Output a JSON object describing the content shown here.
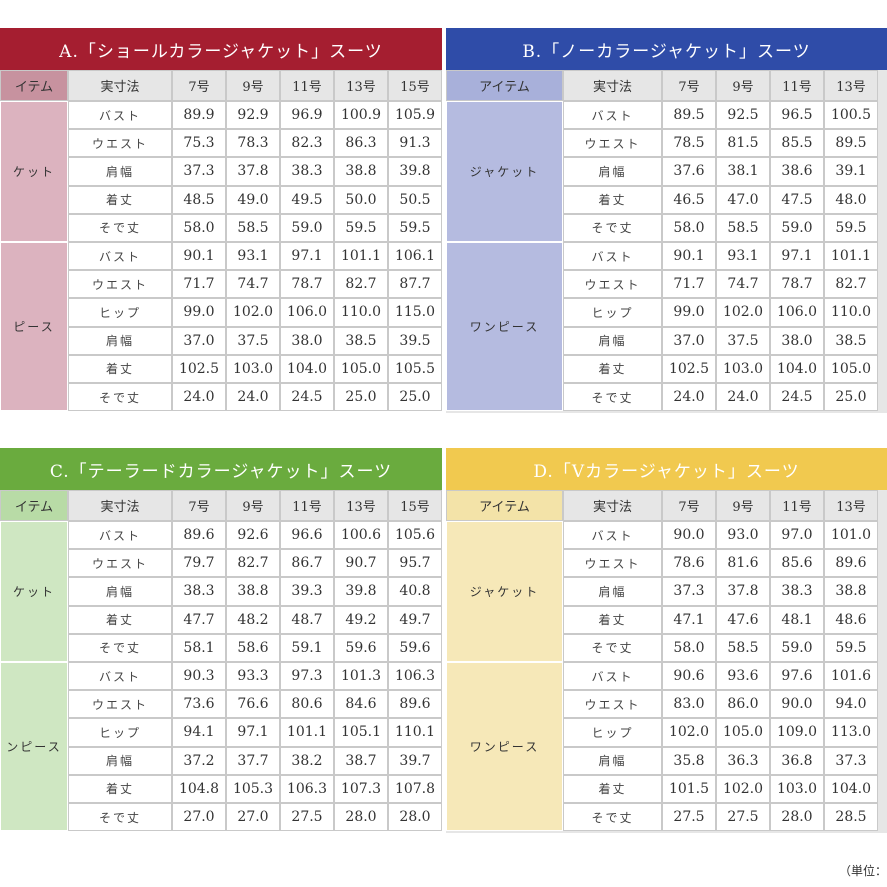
{
  "tables": [
    {
      "title": "A.「ショールカラージャケット」スーツ",
      "headers": [
        "イテム",
        "実寸法",
        "7号",
        "9号",
        "11号",
        "13号",
        "15号"
      ],
      "groups": [
        {
          "item": "ケット",
          "rows": [
            {
              "label": "バスト",
              "values": [
                "89.9",
                "92.9",
                "96.9",
                "100.9",
                "105.9"
              ]
            },
            {
              "label": "ウエスト",
              "values": [
                "75.3",
                "78.3",
                "82.3",
                "86.3",
                "91.3"
              ]
            },
            {
              "label": "肩幅",
              "values": [
                "37.3",
                "37.8",
                "38.3",
                "38.8",
                "39.8"
              ]
            },
            {
              "label": "着丈",
              "values": [
                "48.5",
                "49.0",
                "49.5",
                "50.0",
                "50.5"
              ]
            },
            {
              "label": "そで丈",
              "values": [
                "58.0",
                "58.5",
                "59.0",
                "59.5",
                "59.5"
              ]
            }
          ]
        },
        {
          "item": "ピース",
          "rows": [
            {
              "label": "バスト",
              "values": [
                "90.1",
                "93.1",
                "97.1",
                "101.1",
                "106.1"
              ]
            },
            {
              "label": "ウエスト",
              "values": [
                "71.7",
                "74.7",
                "78.7",
                "82.7",
                "87.7"
              ]
            },
            {
              "label": "ヒップ",
              "values": [
                "99.0",
                "102.0",
                "106.0",
                "110.0",
                "115.0"
              ]
            },
            {
              "label": "肩幅",
              "values": [
                "37.0",
                "37.5",
                "38.0",
                "38.5",
                "39.5"
              ]
            },
            {
              "label": "着丈",
              "values": [
                "102.5",
                "103.0",
                "104.0",
                "105.0",
                "105.5"
              ]
            },
            {
              "label": "そで丈",
              "values": [
                "24.0",
                "24.0",
                "24.5",
                "25.0",
                "25.0"
              ]
            }
          ]
        }
      ]
    },
    {
      "title": "B.「ノーカラージャケット」スーツ",
      "headers": [
        "アイテム",
        "実寸法",
        "7号",
        "9号",
        "11号",
        "13号"
      ],
      "groups": [
        {
          "item": "ジャケット",
          "rows": [
            {
              "label": "バスト",
              "values": [
                "89.5",
                "92.5",
                "96.5",
                "100.5"
              ]
            },
            {
              "label": "ウエスト",
              "values": [
                "78.5",
                "81.5",
                "85.5",
                "89.5"
              ]
            },
            {
              "label": "肩幅",
              "values": [
                "37.6",
                "38.1",
                "38.6",
                "39.1"
              ]
            },
            {
              "label": "着丈",
              "values": [
                "46.5",
                "47.0",
                "47.5",
                "48.0"
              ]
            },
            {
              "label": "そで丈",
              "values": [
                "58.0",
                "58.5",
                "59.0",
                "59.5"
              ]
            }
          ]
        },
        {
          "item": "ワンピース",
          "rows": [
            {
              "label": "バスト",
              "values": [
                "90.1",
                "93.1",
                "97.1",
                "101.1"
              ]
            },
            {
              "label": "ウエスト",
              "values": [
                "71.7",
                "74.7",
                "78.7",
                "82.7"
              ]
            },
            {
              "label": "ヒップ",
              "values": [
                "99.0",
                "102.0",
                "106.0",
                "110.0"
              ]
            },
            {
              "label": "肩幅",
              "values": [
                "37.0",
                "37.5",
                "38.0",
                "38.5"
              ]
            },
            {
              "label": "着丈",
              "values": [
                "102.5",
                "103.0",
                "104.0",
                "105.0"
              ]
            },
            {
              "label": "そで丈",
              "values": [
                "24.0",
                "24.0",
                "24.5",
                "25.0"
              ]
            }
          ]
        }
      ]
    },
    {
      "title": "C.「テーラードカラージャケット」スーツ",
      "headers": [
        "イテム",
        "実寸法",
        "7号",
        "9号",
        "11号",
        "13号",
        "15号"
      ],
      "groups": [
        {
          "item": "ケット",
          "rows": [
            {
              "label": "バスト",
              "values": [
                "89.6",
                "92.6",
                "96.6",
                "100.6",
                "105.6"
              ]
            },
            {
              "label": "ウエスト",
              "values": [
                "79.7",
                "82.7",
                "86.7",
                "90.7",
                "95.7"
              ]
            },
            {
              "label": "肩幅",
              "values": [
                "38.3",
                "38.8",
                "39.3",
                "39.8",
                "40.8"
              ]
            },
            {
              "label": "着丈",
              "values": [
                "47.7",
                "48.2",
                "48.7",
                "49.2",
                "49.7"
              ]
            },
            {
              "label": "そで丈",
              "values": [
                "58.1",
                "58.6",
                "59.1",
                "59.6",
                "59.6"
              ]
            }
          ]
        },
        {
          "item": "ンピース",
          "rows": [
            {
              "label": "バスト",
              "values": [
                "90.3",
                "93.3",
                "97.3",
                "101.3",
                "106.3"
              ]
            },
            {
              "label": "ウエスト",
              "values": [
                "73.6",
                "76.6",
                "80.6",
                "84.6",
                "89.6"
              ]
            },
            {
              "label": "ヒップ",
              "values": [
                "94.1",
                "97.1",
                "101.1",
                "105.1",
                "110.1"
              ]
            },
            {
              "label": "肩幅",
              "values": [
                "37.2",
                "37.7",
                "38.2",
                "38.7",
                "39.7"
              ]
            },
            {
              "label": "着丈",
              "values": [
                "104.8",
                "105.3",
                "106.3",
                "107.3",
                "107.8"
              ]
            },
            {
              "label": "そで丈",
              "values": [
                "27.0",
                "27.0",
                "27.5",
                "28.0",
                "28.0"
              ]
            }
          ]
        }
      ]
    },
    {
      "title": "D.「Vカラージャケット」スーツ",
      "headers": [
        "アイテム",
        "実寸法",
        "7号",
        "9号",
        "11号",
        "13号"
      ],
      "groups": [
        {
          "item": "ジャケット",
          "rows": [
            {
              "label": "バスト",
              "values": [
                "90.0",
                "93.0",
                "97.0",
                "101.0"
              ]
            },
            {
              "label": "ウエスト",
              "values": [
                "78.6",
                "81.6",
                "85.6",
                "89.6"
              ]
            },
            {
              "label": "肩幅",
              "values": [
                "37.3",
                "37.8",
                "38.3",
                "38.8"
              ]
            },
            {
              "label": "着丈",
              "values": [
                "47.1",
                "47.6",
                "48.1",
                "48.6"
              ]
            },
            {
              "label": "そで丈",
              "values": [
                "58.0",
                "58.5",
                "59.0",
                "59.5"
              ]
            }
          ]
        },
        {
          "item": "ワンピース",
          "rows": [
            {
              "label": "バスト",
              "values": [
                "90.6",
                "93.6",
                "97.6",
                "101.6"
              ]
            },
            {
              "label": "ウエスト",
              "values": [
                "83.0",
                "86.0",
                "90.0",
                "94.0"
              ]
            },
            {
              "label": "ヒップ",
              "values": [
                "102.0",
                "105.0",
                "109.0",
                "113.0"
              ]
            },
            {
              "label": "肩幅",
              "values": [
                "35.8",
                "36.3",
                "36.8",
                "37.3"
              ]
            },
            {
              "label": "着丈",
              "values": [
                "101.5",
                "102.0",
                "103.0",
                "104.0"
              ]
            },
            {
              "label": "そで丈",
              "values": [
                "27.5",
                "27.5",
                "28.0",
                "28.5"
              ]
            }
          ]
        }
      ]
    }
  ],
  "note": "（単位："
}
